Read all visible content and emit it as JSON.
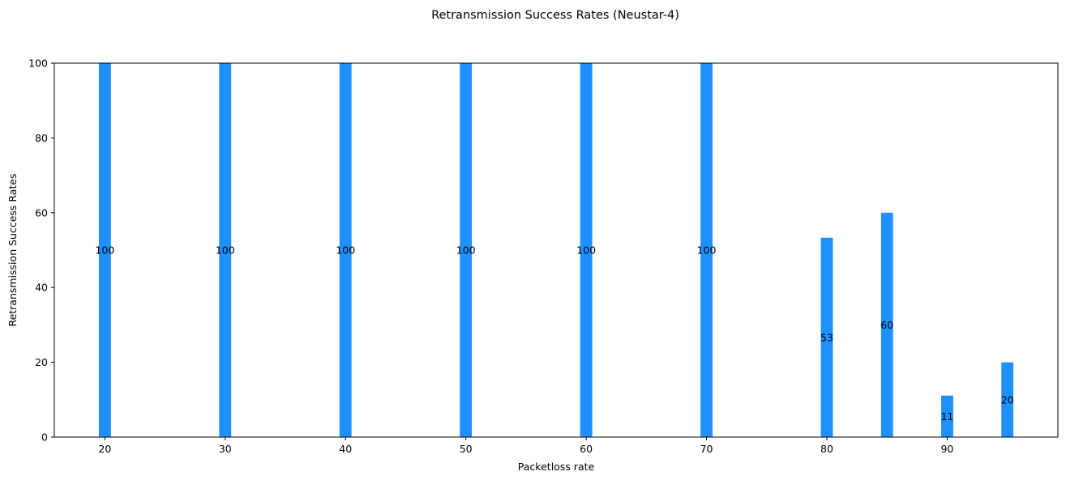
{
  "chart_data": {
    "type": "bar",
    "title": "Retransmission Success Rates (Neustar-4)",
    "xlabel": "Packetloss rate",
    "ylabel": "Retransmission Success Rates",
    "x": [
      20,
      30,
      40,
      50,
      60,
      70,
      80,
      85,
      90,
      95
    ],
    "values": [
      100,
      100,
      100,
      100,
      100,
      100,
      53.3,
      60,
      11.1,
      20
    ],
    "data_labels": [
      "100",
      "100",
      "100",
      "100",
      "100",
      "100",
      "53",
      "60",
      "11",
      "20"
    ],
    "xticks": [
      20,
      30,
      40,
      50,
      60,
      70,
      80,
      90
    ],
    "xtick_labels": [
      "20",
      "30",
      "40",
      "50",
      "60",
      "70",
      "80",
      "90"
    ],
    "yticks": [
      0,
      20,
      40,
      60,
      80,
      100
    ],
    "ytick_labels": [
      "0",
      "20",
      "40",
      "60",
      "80",
      "100"
    ],
    "xlim": [
      15.8,
      99.2
    ],
    "ylim": [
      0,
      100
    ],
    "bar_width": 1,
    "bar_color": "#1E90FF",
    "grid": false,
    "legend": "none"
  }
}
